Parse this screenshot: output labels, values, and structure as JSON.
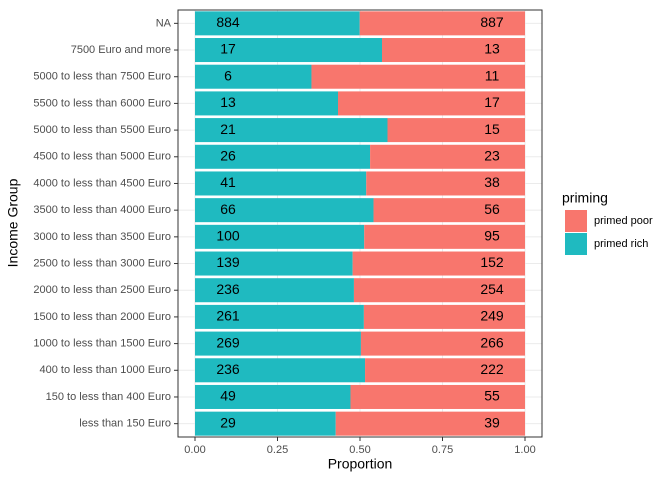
{
  "chart_data": {
    "type": "bar",
    "orientation": "horizontal",
    "position": "fill",
    "x_label": "Proportion",
    "y_label": "Income Group",
    "categories": [
      "NA",
      "7500 Euro and more",
      "5000 to less than 7500 Euro",
      "5500 to less than 6000 Euro",
      "5000 to less than 5500 Euro",
      "4500 to less than 5000 Euro",
      "4000 to less than 4500 Euro",
      "3500 to less than 4000 Euro",
      "3000 to less than 3500 Euro",
      "2500 to less than 3000 Euro",
      "2000 to less than 2500 Euro",
      "1500 to less than 2000 Euro",
      "1000 to less than 1500 Euro",
      "400 to less than 1000 Euro",
      "150 to less than 400 Euro",
      "less than 150 Euro"
    ],
    "series": [
      {
        "name": "primed poor",
        "color": "#f8766d",
        "values": [
          887,
          13,
          11,
          17,
          15,
          23,
          38,
          56,
          95,
          152,
          254,
          249,
          266,
          222,
          55,
          39
        ]
      },
      {
        "name": "primed rich",
        "color": "#1fbac0",
        "values": [
          884,
          17,
          6,
          13,
          21,
          26,
          41,
          66,
          100,
          139,
          236,
          261,
          269,
          236,
          49,
          29
        ]
      }
    ],
    "legend_title": "priming",
    "legend": "right",
    "xlim": [
      0,
      1
    ],
    "xticks": [
      {
        "value": 0,
        "label": "0.00"
      },
      {
        "value": 0.25,
        "label": "0.25"
      },
      {
        "value": 0.5,
        "label": "0.50"
      },
      {
        "value": 0.75,
        "label": "0.75"
      },
      {
        "value": 1,
        "label": "1.00"
      }
    ],
    "grid": true
  }
}
